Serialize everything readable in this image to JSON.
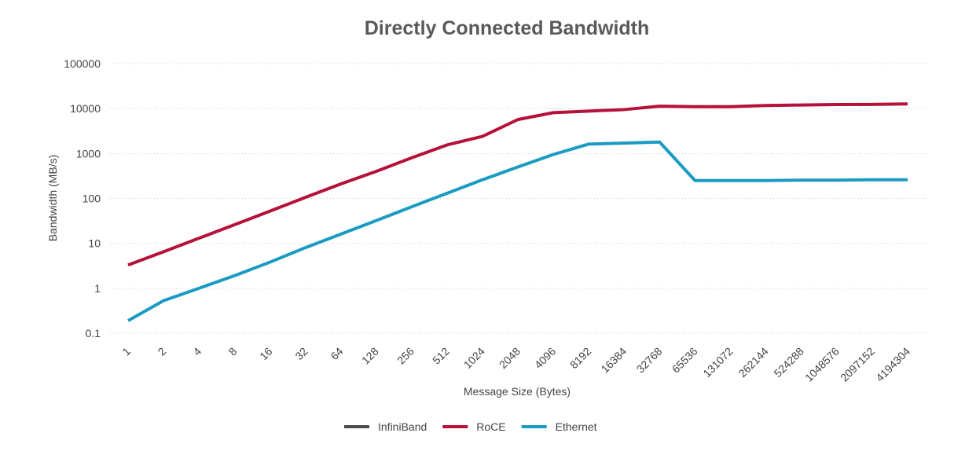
{
  "chart_data": {
    "type": "line",
    "title": "Directly Connected Bandwidth",
    "x_label": "Message Size (Bytes)",
    "y_label": "Bandwidth (MB/s)",
    "log_y": true,
    "grid": true,
    "legend": "bottom",
    "categories": [
      "1",
      "2",
      "4",
      "8",
      "16",
      "32",
      "64",
      "128",
      "256",
      "512",
      "1024",
      "2048",
      "4096",
      "8192",
      "16384",
      "32768",
      "65536",
      "131072",
      "262144",
      "524288",
      "1048576",
      "2097152",
      "4194304"
    ],
    "ylim": [
      0.1,
      100000
    ],
    "yticks": [
      0.1,
      1,
      10,
      100,
      1000,
      10000,
      100000
    ],
    "series": [
      {
        "name": "InfiniBand",
        "color": "#4d4d4f",
        "values": [
          null,
          null,
          null,
          null,
          null,
          null,
          null,
          null,
          null,
          null,
          null,
          null,
          null,
          null,
          null,
          null,
          null,
          null,
          null,
          null,
          null,
          null,
          null
        ]
      },
      {
        "name": "RoCE",
        "color": "#b5123a",
        "values": [
          3.3,
          6.5,
          13,
          26,
          52,
          105,
          210,
          400,
          800,
          1550,
          2400,
          5700,
          8100,
          8800,
          9500,
          11300,
          11000,
          11000,
          11700,
          12000,
          12300,
          12400,
          12700
        ]
      },
      {
        "name": "Ethernet",
        "color": "#1a9bc1",
        "values": [
          0.19,
          0.53,
          1.0,
          1.9,
          3.8,
          8,
          16,
          32,
          65,
          130,
          260,
          500,
          950,
          1620,
          1700,
          1800,
          250,
          250,
          250,
          255,
          255,
          260,
          260
        ]
      }
    ]
  }
}
